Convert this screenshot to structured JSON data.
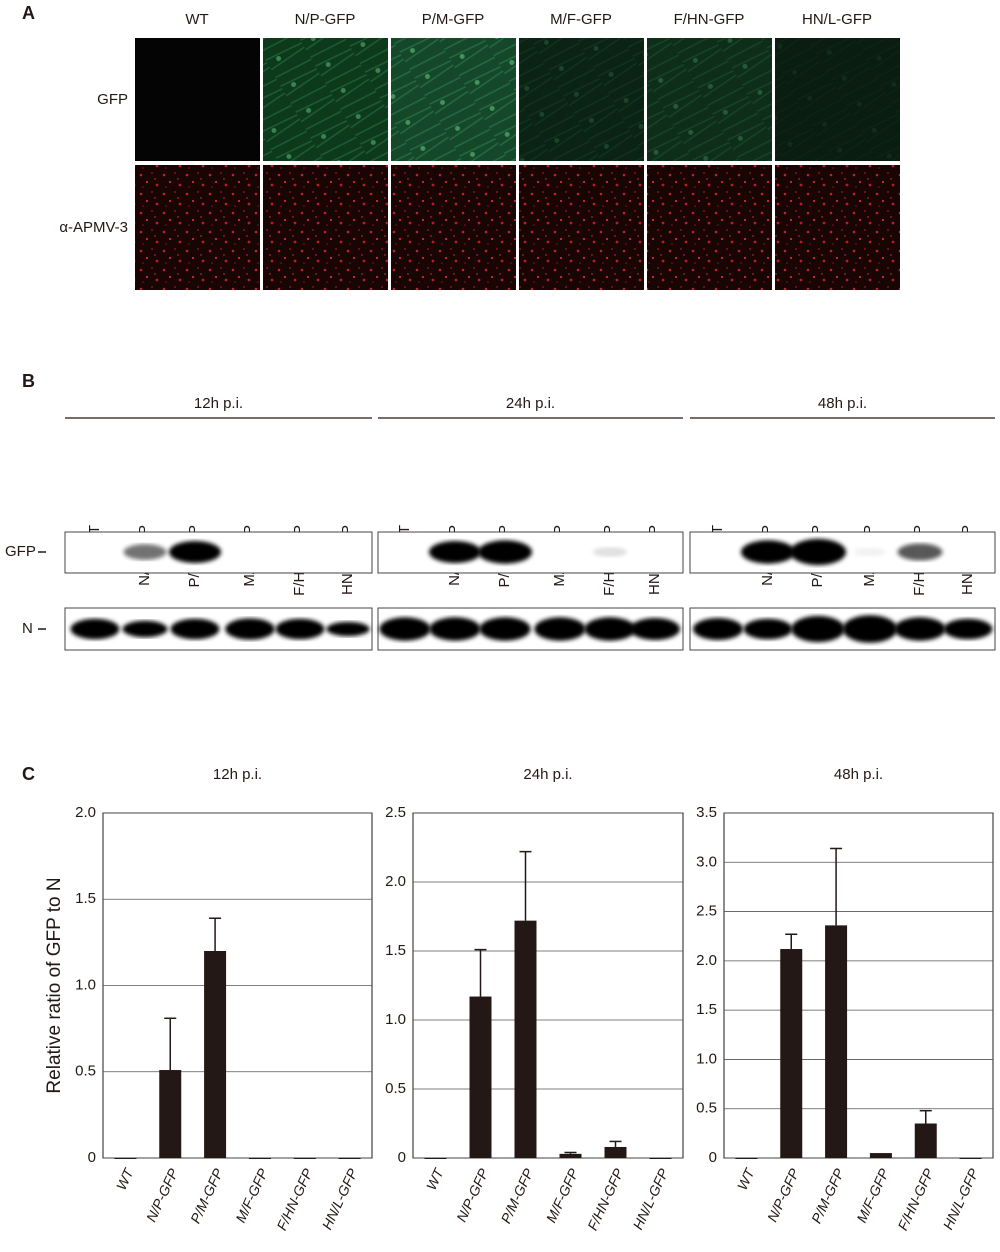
{
  "panel_a": {
    "label": "A",
    "columns": [
      "WT",
      "N/P-GFP",
      "P/M-GFP",
      "M/F-GFP",
      "F/HN-GFP",
      "HN/L-GFP"
    ],
    "rows": [
      "GFP",
      "α-APMV-3"
    ]
  },
  "panel_b": {
    "label": "B",
    "rows": [
      "GFP",
      "N"
    ],
    "groups": [
      {
        "title": "12h p.i.",
        "lanes": [
          "WT",
          "N/P-GFP",
          "P/M-GFP",
          "M/F-GFP",
          "F/HN-GFP",
          "HN/L-GFP"
        ]
      },
      {
        "title": "24h p.i.",
        "lanes": [
          "WT",
          "N/P-GFP",
          "P/M-GFP",
          "M/F-GFP",
          "F/HN-GFP",
          "HN/L-GFP"
        ]
      },
      {
        "title": "48h p.i.",
        "lanes": [
          "WT",
          "N/P-GFP",
          "P/M-GFP",
          "M/F-GFP",
          "F/HN-GFP",
          "HN/L-GFP"
        ]
      }
    ]
  },
  "panel_c": {
    "label": "C"
  },
  "chart_data": [
    {
      "type": "bar",
      "title": "12h p.i.",
      "ylabel": "Relative ratio of GFP to N",
      "categories": [
        "WT",
        "N/P-GFP",
        "P/M-GFP",
        "M/F-GFP",
        "F/HN-GFP",
        "HN/L-GFP"
      ],
      "values": [
        0,
        0.51,
        1.2,
        0,
        0,
        0
      ],
      "errors": [
        null,
        0.3,
        0.19,
        null,
        null,
        null
      ],
      "ylim": [
        0,
        2
      ],
      "yticks": [
        0,
        0.5,
        {
          "value": 1,
          "label": "1.0"
        },
        1.5,
        {
          "value": 2,
          "label": "2.0"
        }
      ],
      "grid": true,
      "color": "#231815"
    },
    {
      "type": "bar",
      "title": "24h p.i.",
      "categories": [
        "WT",
        "N/P-GFP",
        "P/M-GFP",
        "M/F-GFP",
        "F/HN-GFP",
        "HN/L-GFP"
      ],
      "values": [
        0,
        1.17,
        1.72,
        0.03,
        0.08,
        0
      ],
      "errors": [
        null,
        0.34,
        0.5,
        0.01,
        0.04,
        null
      ],
      "ylim": [
        0,
        2.5
      ],
      "yticks": [
        0,
        0.5,
        {
          "value": 1,
          "label": "1.0"
        },
        1.5,
        {
          "value": 2,
          "label": "2.0"
        },
        2.5
      ],
      "grid": true,
      "color": "#231815"
    },
    {
      "type": "bar",
      "title": "48h p.i.",
      "categories": [
        "WT",
        "N/P-GFP",
        "P/M-GFP",
        "M/F-GFP",
        "F/HN-GFP",
        "HN/L-GFP"
      ],
      "values": [
        0,
        2.12,
        2.36,
        0.05,
        0.35,
        0
      ],
      "errors": [
        null,
        0.15,
        0.78,
        null,
        0.13,
        null
      ],
      "ylim": [
        0,
        3.5
      ],
      "yticks": [
        0,
        0.5,
        {
          "value": 1,
          "label": "1.0"
        },
        1.5,
        {
          "value": 2,
          "label": "2.0"
        },
        2.5,
        {
          "value": 3,
          "label": "3.0"
        },
        3.5
      ],
      "grid": true,
      "color": "#231815"
    }
  ]
}
